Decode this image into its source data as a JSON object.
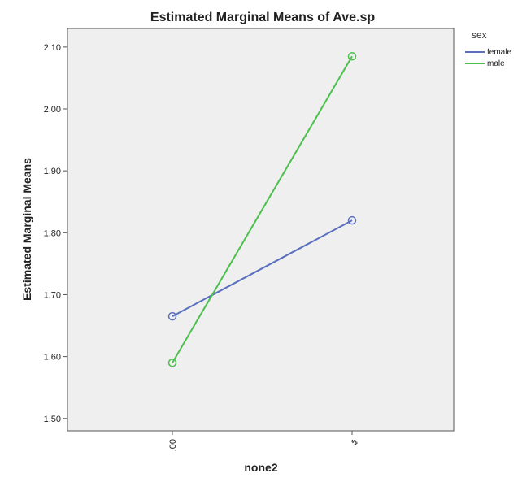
{
  "chart_data": {
    "type": "line",
    "title": "Estimated Marginal Means of Ave.sp",
    "xlabel": "none2",
    "ylabel": "Estimated Marginal Means",
    "categories": [
      ".00",
      "ي"
    ],
    "ylim": [
      1.48,
      2.13
    ],
    "yticks": [
      1.5,
      1.6,
      1.7,
      1.8,
      1.9,
      2.0,
      2.1
    ],
    "ytick_labels": [
      "1.50",
      "1.60",
      "1.70",
      "1.80",
      "1.90",
      "2.00",
      "2.10"
    ],
    "grid": false,
    "legend": {
      "title": "sex",
      "position": "top-right"
    },
    "series": [
      {
        "name": "female",
        "values": [
          1.665,
          1.82
        ],
        "color": "#5b6fbf"
      },
      {
        "name": "male",
        "values": [
          1.59,
          2.085
        ],
        "color": "#4cc04c"
      }
    ],
    "plot_background": "#efefef",
    "marker": "open-circle"
  }
}
